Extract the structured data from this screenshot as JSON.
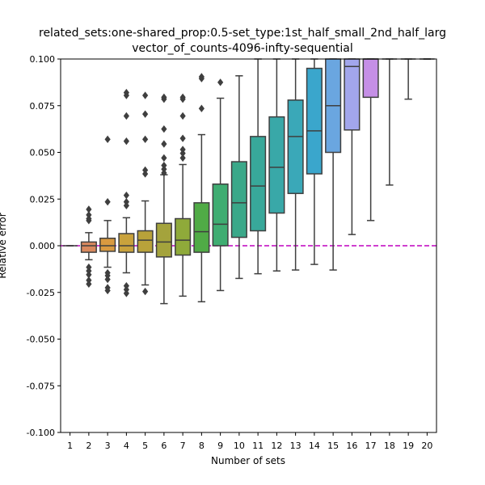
{
  "chart_data": {
    "type": "box",
    "title_lines": [
      "related_sets:one-shared_prop:0.5-set_type:1st_half_small_2nd_half_larg",
      "vector_of_counts-4096-infty-sequential"
    ],
    "xlabel": "Number of sets",
    "ylabel": "Relative error",
    "xlim": [
      0.5,
      20.5
    ],
    "ylim": [
      -0.1,
      0.1
    ],
    "y_ticks": [
      "-0.100",
      "-0.075",
      "-0.050",
      "-0.025",
      "0.000",
      "0.025",
      "0.050",
      "0.075",
      "0.100"
    ],
    "categories": [
      "1",
      "2",
      "3",
      "4",
      "5",
      "6",
      "7",
      "8",
      "9",
      "10",
      "11",
      "12",
      "13",
      "14",
      "15",
      "16",
      "17",
      "18",
      "19",
      "20"
    ],
    "reference_line": {
      "y": 0.0,
      "color": "#bf00bf",
      "style": "dashed"
    },
    "boxes": [
      {
        "x": 1,
        "q1": 0.0,
        "median": 0.0,
        "q3": 0.0,
        "whisker_low": 0.0,
        "whisker_high": 0.0,
        "fliers": [],
        "color": "#3a6fb0"
      },
      {
        "x": 2,
        "q1": -0.0035,
        "median": 0.0,
        "q3": 0.002,
        "whisker_low": -0.0075,
        "whisker_high": 0.007,
        "fliers": [
          0.0195,
          0.0165,
          0.0145,
          0.0135,
          -0.0115,
          -0.0135,
          -0.0155,
          -0.0185,
          -0.0205
        ],
        "color": "#d9895e"
      },
      {
        "x": 3,
        "q1": -0.003,
        "median": 0.0,
        "q3": 0.004,
        "whisker_low": -0.0115,
        "whisker_high": 0.0135,
        "fliers": [
          0.057,
          0.0235,
          -0.0145,
          -0.016,
          -0.018,
          -0.0225,
          -0.024
        ],
        "color": "#d99a40"
      },
      {
        "x": 4,
        "q1": -0.0035,
        "median": 0.0,
        "q3": 0.0065,
        "whisker_low": -0.0145,
        "whisker_high": 0.015,
        "fliers": [
          0.082,
          0.0805,
          0.0695,
          0.056,
          0.027,
          0.0235,
          0.0215,
          -0.0215,
          -0.0235,
          -0.0255
        ],
        "color": "#c9a23c"
      },
      {
        "x": 5,
        "q1": -0.0035,
        "median": 0.003,
        "q3": 0.008,
        "whisker_low": -0.021,
        "whisker_high": 0.024,
        "fliers": [
          0.0805,
          0.0705,
          0.057,
          0.0405,
          0.0385,
          -0.0245
        ],
        "color": "#b8a23a"
      },
      {
        "x": 6,
        "q1": -0.006,
        "median": 0.002,
        "q3": 0.012,
        "whisker_low": -0.031,
        "whisker_high": 0.038,
        "fliers": [
          0.0795,
          0.0785,
          0.0625,
          0.0545,
          0.047,
          0.043,
          0.041,
          0.039
        ],
        "color": "#a4a33c"
      },
      {
        "x": 7,
        "q1": -0.005,
        "median": 0.003,
        "q3": 0.0145,
        "whisker_low": -0.027,
        "whisker_high": 0.0435,
        "fliers": [
          0.0795,
          0.0785,
          0.0695,
          0.0575,
          0.0515,
          0.0495,
          0.047
        ],
        "color": "#8faa3a"
      },
      {
        "x": 8,
        "q1": -0.0035,
        "median": 0.0075,
        "q3": 0.023,
        "whisker_low": -0.03,
        "whisker_high": 0.0595,
        "fliers": [
          0.0905,
          0.0895,
          0.0735
        ],
        "color": "#50ab46"
      },
      {
        "x": 9,
        "q1": 0.0,
        "median": 0.0115,
        "q3": 0.033,
        "whisker_low": -0.024,
        "whisker_high": 0.079,
        "fliers": [
          0.0875
        ],
        "color": "#3fad72"
      },
      {
        "x": 10,
        "q1": 0.0045,
        "median": 0.023,
        "q3": 0.045,
        "whisker_low": -0.0175,
        "whisker_high": 0.091,
        "fliers": [],
        "color": "#3aa889"
      },
      {
        "x": 11,
        "q1": 0.008,
        "median": 0.032,
        "q3": 0.0585,
        "whisker_low": -0.015,
        "whisker_high": 0.1,
        "fliers": [],
        "color": "#38a89a"
      },
      {
        "x": 12,
        "q1": 0.0175,
        "median": 0.042,
        "q3": 0.069,
        "whisker_low": -0.0135,
        "whisker_high": 0.1,
        "fliers": [],
        "color": "#39a8a8"
      },
      {
        "x": 13,
        "q1": 0.028,
        "median": 0.0585,
        "q3": 0.078,
        "whisker_low": -0.013,
        "whisker_high": 0.1,
        "fliers": [],
        "color": "#3aa8b8"
      },
      {
        "x": 14,
        "q1": 0.0385,
        "median": 0.0615,
        "q3": 0.095,
        "whisker_low": -0.01,
        "whisker_high": 0.1,
        "fliers": [],
        "color": "#3aa6cc"
      },
      {
        "x": 15,
        "q1": 0.05,
        "median": 0.075,
        "q3": 0.1,
        "whisker_low": -0.013,
        "whisker_high": 0.1,
        "fliers": [],
        "color": "#6aa6e0"
      },
      {
        "x": 16,
        "q1": 0.062,
        "median": 0.096,
        "q3": 0.1,
        "whisker_low": 0.006,
        "whisker_high": 0.1,
        "fliers": [],
        "color": "#a2a6ec"
      },
      {
        "x": 17,
        "q1": 0.0795,
        "median": 0.1,
        "q3": 0.1,
        "whisker_low": 0.0135,
        "whisker_high": 0.1,
        "fliers": [],
        "color": "#c58fe6"
      },
      {
        "x": 18,
        "q1": 0.1,
        "median": 0.1,
        "q3": 0.1,
        "whisker_low": 0.0325,
        "whisker_high": 0.1,
        "fliers": [],
        "color": "#d88ad8"
      },
      {
        "x": 19,
        "q1": 0.1,
        "median": 0.1,
        "q3": 0.1,
        "whisker_low": 0.0785,
        "whisker_high": 0.1,
        "fliers": [],
        "color": "#e08ac8"
      },
      {
        "x": 20,
        "q1": 0.1,
        "median": 0.1,
        "q3": 0.1,
        "whisker_low": 0.1,
        "whisker_high": 0.1,
        "fliers": [],
        "color": "#e88ab8"
      }
    ],
    "grid": false,
    "legend": "none"
  }
}
